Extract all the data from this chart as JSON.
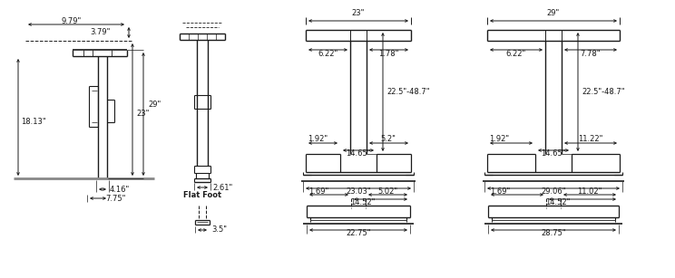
{
  "bg_color": "#ffffff",
  "lc": "#1a1a1a",
  "fs": 6.0,
  "labels": {
    "side": {
      "9.79": "9.79\"",
      "3.79": "3.79\"",
      "29": "29\"",
      "23": "23\"",
      "18.13": "18.13\"",
      "4.16": "4.16\"",
      "7.75": "7.75\""
    },
    "single": {
      "2.61": "2.61\""
    },
    "f23": {
      "23": "23\"",
      "6.22": "6.22\"",
      "1.78": "1.78\"",
      "22.5": "22.5\"-48.7\"",
      "1.92": "1.92\"",
      "5.2": "5.2\"",
      "14.65": "14.65\"",
      "23.03": "23.03\""
    },
    "f29": {
      "29": "29\"",
      "6.22": "6.22\"",
      "7.78": "7.78\"",
      "22.5": "22.5\"-48.7\"",
      "1.92": "1.92\"",
      "11.22": "11.22\"",
      "14.65": "14.65\"",
      "29.06": "29.06\""
    },
    "ff_single": {
      "3.5": "3.5\""
    },
    "ff23": {
      "1.69": "1.69\"",
      "14.52": "14.52\"",
      "5.02": "5.02\"",
      "22.75": "22.75\""
    },
    "ff29": {
      "1.69": "1.69\"",
      "14.52": "14.52\"",
      "11.02": "11.02\"",
      "28.75": "28.75\""
    },
    "flat_foot": "Flat Foot"
  }
}
